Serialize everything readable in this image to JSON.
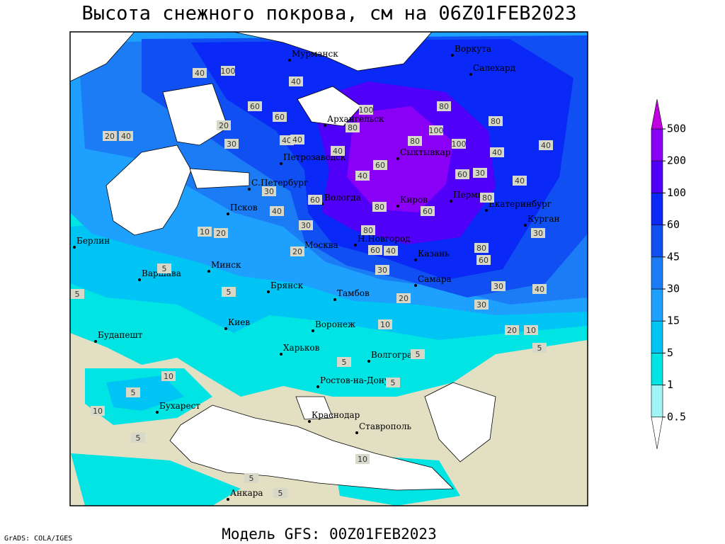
{
  "title": "Высота снежного покрова, см на 06Z01FEB2023",
  "footer": "Модель GFS: 00Z01FEB2023",
  "credit": "GrADS: COLA/IGES",
  "cities": [
    "Мурманск",
    "Воркута",
    "Салехард",
    "Архангельск",
    "Петрозаводск",
    "Сыктывкар",
    "С.Петербург",
    "Вологда",
    "Киров",
    "Пермь",
    "Екатеринбург",
    "Курган",
    "Псков",
    "Берлин",
    "Минск",
    "Москва",
    "Н.Новгород",
    "Казань",
    "Варшава",
    "Брянск",
    "Тамбов",
    "Самара",
    "Киев",
    "Воронеж",
    "Будапешт",
    "Харьков",
    "Волгоград",
    "Ростов-на-Дону",
    "Бухарест",
    "Краснодар",
    "Ставрополь",
    "Анкара"
  ],
  "contour_labels": [
    40,
    100,
    40,
    60,
    60,
    20,
    40,
    20,
    30,
    40,
    40,
    40,
    100,
    80,
    80,
    100,
    80,
    100,
    80,
    40,
    40,
    40,
    60,
    60,
    30,
    40,
    60,
    80,
    60,
    80,
    30,
    30,
    40,
    10,
    20,
    80,
    30,
    60,
    40,
    20,
    80,
    60,
    30,
    30,
    40,
    30,
    5,
    5,
    5,
    20,
    10,
    20,
    10,
    5,
    5,
    10,
    5,
    10,
    5,
    5,
    5,
    10,
    5,
    5
  ],
  "legend": {
    "levels": [
      0.5,
      1,
      5,
      15,
      30,
      45,
      60,
      100,
      200,
      500
    ],
    "colors": [
      "#ffffff",
      "#9ff4f4",
      "#00e4e4",
      "#00c4f4",
      "#1ea0ff",
      "#1c7cf6",
      "#1050f2",
      "#0a28f6",
      "#5000f8",
      "#8a00f6",
      "#c000e0"
    ]
  }
}
